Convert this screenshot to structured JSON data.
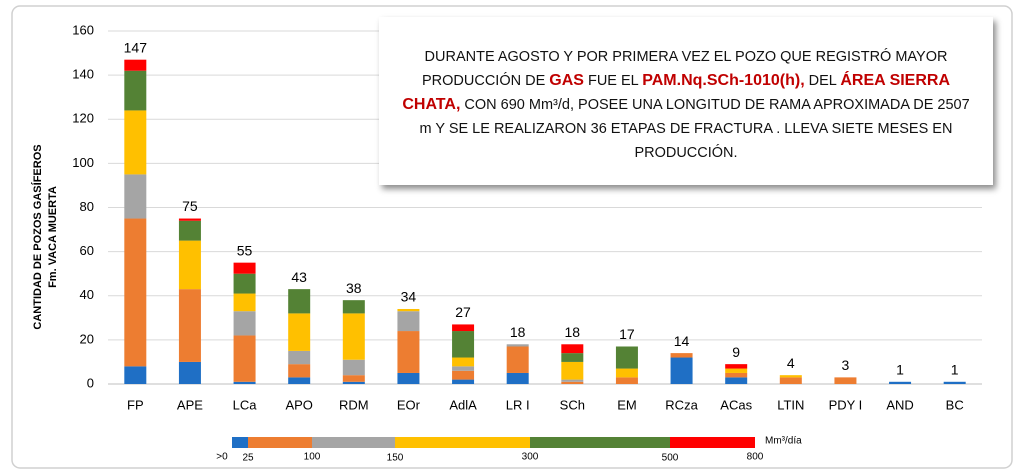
{
  "chart_data": {
    "type": "stacked_bar",
    "y_label": [
      "CANTIDAD DE POZOS GASÍFEROS",
      "Fm. VACA MUERTA"
    ],
    "categories": [
      "FP",
      "APE",
      "LCa",
      "APO",
      "RDM",
      "EOr",
      "AdlA",
      "LR I",
      "SCh",
      "EM",
      "RCza",
      "ACas",
      "LTIN",
      "PDY I",
      "AND",
      "BC"
    ],
    "series": [
      {
        "color": "#1f6fc5",
        "values": [
          8,
          10,
          1,
          3,
          1,
          5,
          2,
          5,
          0,
          0,
          12,
          3,
          0,
          0,
          1,
          1
        ]
      },
      {
        "color": "#ed7d31",
        "values": [
          67,
          33,
          21,
          6,
          3,
          19,
          4,
          12,
          1,
          3,
          2,
          2,
          3,
          3,
          0,
          0
        ]
      },
      {
        "color": "#a5a5a5",
        "values": [
          20,
          0,
          11,
          6,
          7,
          9,
          2,
          1,
          1,
          0,
          0,
          0,
          0,
          0,
          0,
          0
        ]
      },
      {
        "color": "#ffc000",
        "values": [
          29,
          22,
          8,
          17,
          21,
          1,
          4,
          0,
          8,
          4,
          0,
          2,
          1,
          0,
          0,
          0
        ]
      },
      {
        "color": "#548235",
        "values": [
          18,
          9,
          9,
          11,
          6,
          0,
          12,
          0,
          4,
          10,
          0,
          0,
          0,
          0,
          0,
          0
        ]
      },
      {
        "color": "#ff0000",
        "values": [
          5,
          1,
          5,
          0,
          0,
          0,
          3,
          0,
          4,
          0,
          0,
          2,
          0,
          0,
          0,
          0
        ]
      }
    ],
    "totals": [
      147,
      75,
      55,
      43,
      38,
      34,
      27,
      18,
      18,
      17,
      14,
      9,
      4,
      3,
      1,
      1
    ],
    "ylim": [
      0,
      160
    ],
    "yticks": [
      0,
      20,
      40,
      60,
      80,
      100,
      120,
      140,
      160
    ],
    "grid": true,
    "legend": {
      "bounds": [
        {
          "value": 0,
          "label": ">0"
        },
        25,
        100,
        150,
        300,
        500,
        800
      ],
      "unit": "Mm³/día"
    },
    "annotation": [
      {
        "text": "DURANTE AGOSTO Y POR PRIMERA VEZ EL POZO QUE REGISTRÓ MAYOR PRODUCCIÓN DE "
      },
      {
        "text": "GAS",
        "emphasis": true
      },
      {
        "text": " FUE EL "
      },
      {
        "text": "PAM.Nq.SCh-1010(h),",
        "emphasis": true
      },
      {
        "text": " DEL "
      },
      {
        "text": "ÁREA SIERRA CHATA,",
        "emphasis": true
      },
      {
        "text": " CON 690 Mm³/d, POSEE UNA LONGITUD DE RAMA APROXIMADA DE 2507 m Y SE LE REALIZARON 36 ETAPAS DE FRACTURA . LLEVA SIETE MESES EN PRODUCCIÓN."
      }
    ]
  }
}
